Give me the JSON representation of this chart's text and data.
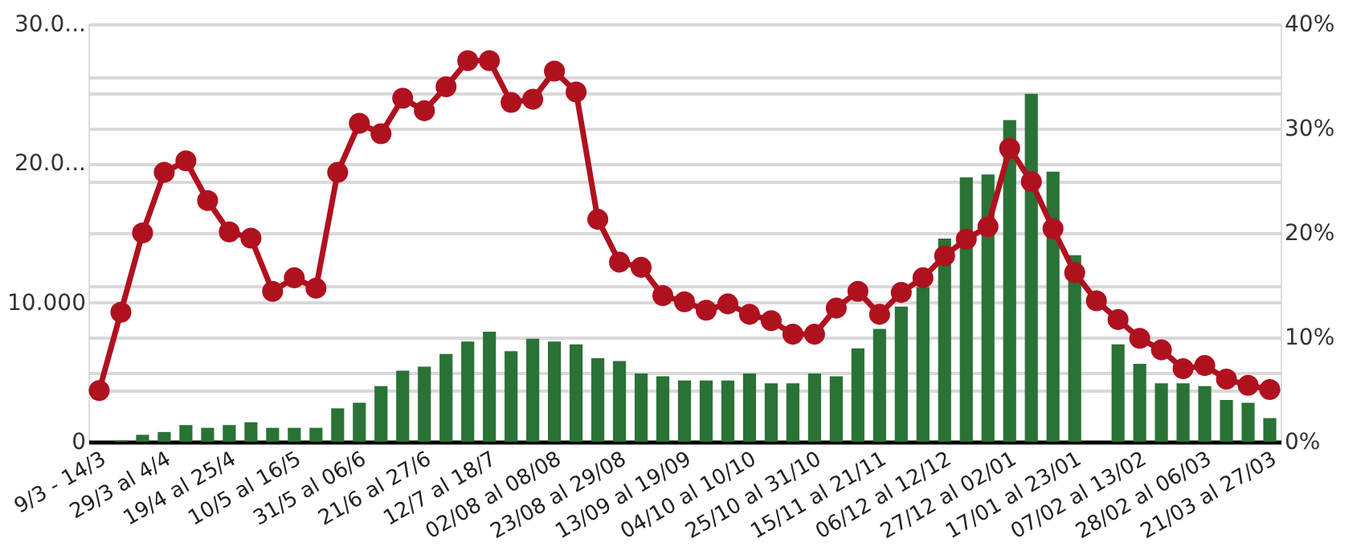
{
  "chart_data": {
    "type": "bar",
    "categories": [
      "9/3 - 14/3",
      null,
      null,
      "29/3 al 4/4",
      null,
      null,
      "19/4 al 25/4",
      null,
      null,
      "10/5 al 16/5",
      null,
      null,
      "31/5 al 06/6",
      null,
      null,
      "21/6 al 27/6",
      null,
      null,
      "12/7 al 18/7",
      null,
      null,
      "02/08 al 08/08",
      null,
      null,
      "23/08 al 29/08",
      null,
      null,
      "13/09 al 19/09",
      null,
      null,
      "04/10 al 10/10",
      null,
      null,
      "25/10 al 31/10",
      null,
      null,
      "15/11 al 21/11",
      null,
      null,
      "06/12 al 12/12",
      null,
      null,
      "27/12 al 02/01",
      null,
      null,
      "17/01 al 23/01",
      null,
      null,
      "07/02 al 13/02",
      null,
      null,
      "28/02 al 06/03",
      null,
      null,
      "21/03 al 27/03"
    ],
    "series": [
      {
        "color": "#2a7236",
        "values": [
          0,
          100,
          500,
          700,
          1200,
          1000,
          1200,
          1400,
          1000,
          1000,
          1000,
          2400,
          2800,
          4000,
          5100,
          5400,
          6300,
          7200,
          7900,
          6500,
          7400,
          7200,
          7000,
          6000,
          5800,
          4900,
          4700,
          4400,
          4400,
          4400,
          4900,
          4200,
          4200,
          4900,
          4700,
          6700,
          8100,
          9700,
          11100,
          14600,
          19000,
          19200,
          23100,
          25000,
          19400,
          13400,
          null,
          7000,
          5600,
          4200,
          4200,
          4000,
          3000,
          2800,
          1700
        ]
      },
      {
        "type": "line",
        "axis": "y2",
        "color": "#b0111f",
        "marker": "circle",
        "line_style": "solid",
        "values": [
          4.9,
          12.4,
          20.0,
          25.8,
          26.9,
          23.1,
          20.1,
          19.5,
          14.4,
          15.7,
          14.7,
          25.8,
          30.5,
          29.5,
          32.9,
          31.7,
          34.0,
          36.5,
          36.5,
          32.5,
          32.8,
          35.5,
          33.5,
          21.3,
          17.2,
          16.7,
          14.0,
          13.4,
          12.6,
          13.2,
          12.2,
          11.6,
          10.3,
          10.3,
          12.8,
          14.4,
          12.2,
          14.3,
          15.7,
          17.8,
          19.4,
          20.6,
          28.1,
          24.9,
          20.4,
          16.2,
          13.5,
          11.7,
          9.9,
          8.8,
          7.0,
          7.3,
          6.0,
          5.4,
          5.0
        ]
      }
    ],
    "ylim": [
      0,
      30000
    ],
    "yticks": [
      0,
      {
        "value": 5000,
        "label": null
      },
      {
        "value": 10000,
        "label": "10.000"
      },
      {
        "value": 15000,
        "label": null
      },
      {
        "value": 20000,
        "label": "20.0..."
      },
      {
        "value": 25000,
        "label": null
      },
      {
        "value": 30000,
        "label": "30.0..."
      }
    ],
    "y2lim": [
      0,
      40
    ],
    "y2ticks": [
      {
        "value": 0,
        "label": "0%"
      },
      {
        "value": 5,
        "label": null
      },
      {
        "value": 10,
        "label": "10%"
      },
      {
        "value": 15,
        "label": null
      },
      {
        "value": 20,
        "label": "20%"
      },
      {
        "value": 25,
        "label": null
      },
      {
        "value": 30,
        "label": "30%"
      },
      {
        "value": 35,
        "label": null
      },
      {
        "value": 40,
        "label": "40%"
      }
    ],
    "grid": true
  }
}
